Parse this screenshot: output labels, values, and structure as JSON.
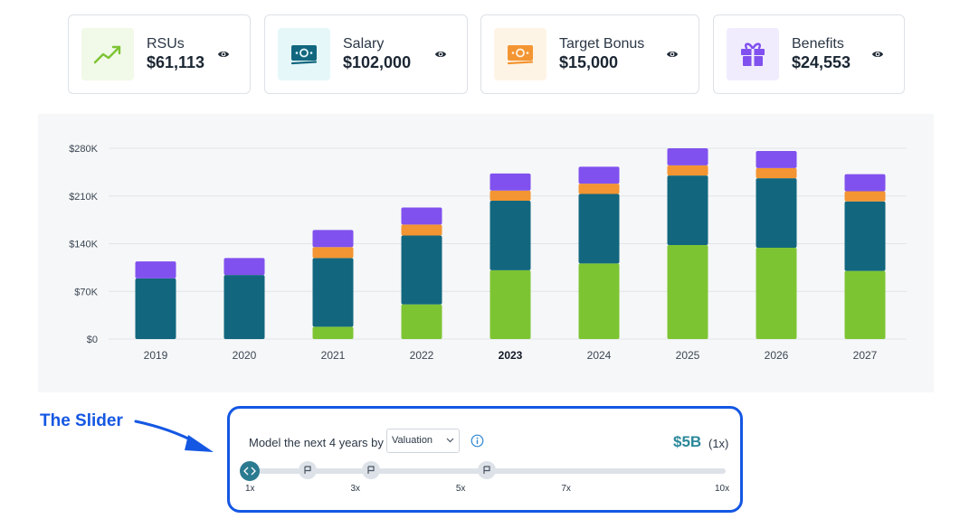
{
  "cards": [
    {
      "label": "RSUs",
      "value": "$61,113",
      "icon": "trending-up-icon",
      "color": "#7dc433"
    },
    {
      "label": "Salary",
      "value": "$102,000",
      "icon": "banknote-icon",
      "color": "#12677f"
    },
    {
      "label": "Target Bonus",
      "value": "$15,000",
      "icon": "banknote-icon",
      "color": "#f39532"
    },
    {
      "label": "Benefits",
      "value": "$24,553",
      "icon": "gift-icon",
      "color": "#8051ee"
    }
  ],
  "chart_data": {
    "type": "bar",
    "stacked": true,
    "categories": [
      "2019",
      "2020",
      "2021",
      "2022",
      "2023",
      "2024",
      "2025",
      "2026",
      "2027"
    ],
    "series": [
      {
        "name": "RSUs",
        "color": "#7dc433",
        "values": [
          0,
          0,
          18000,
          51000,
          101000,
          111000,
          138000,
          134000,
          100000
        ]
      },
      {
        "name": "Salary",
        "color": "#12677f",
        "values": [
          89000,
          94000,
          101000,
          101000,
          102000,
          102000,
          102000,
          102000,
          102000
        ]
      },
      {
        "name": "Target Bonus",
        "color": "#f39532",
        "values": [
          0,
          0,
          16000,
          16000,
          15000,
          15000,
          15000,
          15000,
          15000
        ]
      },
      {
        "name": "Benefits",
        "color": "#8051ee",
        "values": [
          25000,
          25000,
          25000,
          25000,
          25000,
          25000,
          25000,
          25000,
          25000
        ]
      }
    ],
    "ylim": [
      0,
      280000
    ],
    "yticks": [
      "$0",
      "$70K",
      "$140K",
      "$210K",
      "$280K"
    ],
    "grid": true,
    "highlight_category": "2023"
  },
  "annotation": {
    "label": "The Slider"
  },
  "slider": {
    "label": "Model the next 4 years by",
    "select_value": "Valuation",
    "value": "$5B",
    "multiplier": "(1x)",
    "ticks": [
      "1x",
      "3x",
      "5x",
      "7x",
      "10x"
    ],
    "current": 1,
    "range": [
      1,
      10
    ],
    "markers": [
      2.1,
      3.3,
      5.5
    ]
  }
}
